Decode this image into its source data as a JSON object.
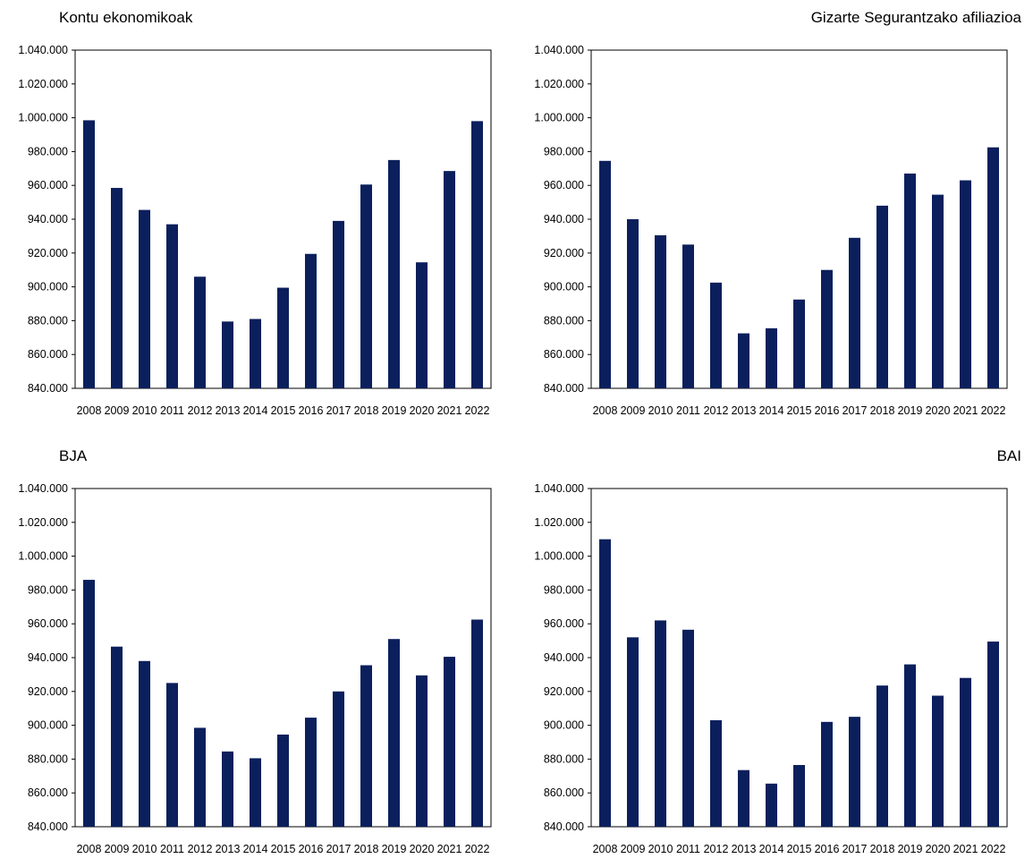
{
  "chart_data": [
    {
      "type": "bar",
      "title": "Kontu ekonomikoak",
      "title_align": "left",
      "categories": [
        "2008",
        "2009",
        "2010",
        "2011",
        "2012",
        "2013",
        "2014",
        "2015",
        "2016",
        "2017",
        "2018",
        "2019",
        "2020",
        "2021",
        "2022"
      ],
      "values": [
        998500,
        958500,
        945500,
        937000,
        906000,
        879500,
        881000,
        899500,
        919500,
        939000,
        960500,
        975000,
        914500,
        968500,
        998000
      ],
      "ylim": [
        840000,
        1040000
      ],
      "yticks": [
        840000,
        860000,
        880000,
        900000,
        920000,
        940000,
        960000,
        980000,
        1000000,
        1020000,
        1040000
      ],
      "ytick_labels": [
        "840.000",
        "860.000",
        "880.000",
        "900.000",
        "920.000",
        "940.000",
        "960.000",
        "980.000",
        "1.000.000",
        "1.020.000",
        "1.040.000"
      ],
      "bar_color": "#0b1f5c",
      "grid": false,
      "legend": false
    },
    {
      "type": "bar",
      "title": "Gizarte Segurantzako afiliazioa",
      "title_align": "right",
      "categories": [
        "2008",
        "2009",
        "2010",
        "2011",
        "2012",
        "2013",
        "2014",
        "2015",
        "2016",
        "2017",
        "2018",
        "2019",
        "2020",
        "2021",
        "2022"
      ],
      "values": [
        974500,
        940000,
        930500,
        925000,
        902500,
        872500,
        875500,
        892500,
        910000,
        929000,
        948000,
        967000,
        954500,
        963000,
        982500
      ],
      "ylim": [
        840000,
        1040000
      ],
      "yticks": [
        840000,
        860000,
        880000,
        900000,
        920000,
        940000,
        960000,
        980000,
        1000000,
        1020000,
        1040000
      ],
      "ytick_labels": [
        "840.000",
        "860.000",
        "880.000",
        "900.000",
        "920.000",
        "940.000",
        "960.000",
        "980.000",
        "1.000.000",
        "1.020.000",
        "1.040.000"
      ],
      "bar_color": "#0b1f5c",
      "grid": false,
      "legend": false
    },
    {
      "type": "bar",
      "title": "BJA",
      "title_align": "left",
      "categories": [
        "2008",
        "2009",
        "2010",
        "2011",
        "2012",
        "2013",
        "2014",
        "2015",
        "2016",
        "2017",
        "2018",
        "2019",
        "2020",
        "2021",
        "2022"
      ],
      "values": [
        986000,
        946500,
        938000,
        925000,
        898500,
        884500,
        880500,
        894500,
        904500,
        920000,
        935500,
        951000,
        929500,
        940500,
        962500
      ],
      "ylim": [
        840000,
        1040000
      ],
      "yticks": [
        840000,
        860000,
        880000,
        900000,
        920000,
        940000,
        960000,
        980000,
        1000000,
        1020000,
        1040000
      ],
      "ytick_labels": [
        "840.000",
        "860.000",
        "880.000",
        "900.000",
        "920.000",
        "940.000",
        "960.000",
        "980.000",
        "1.000.000",
        "1.020.000",
        "1.040.000"
      ],
      "bar_color": "#0b1f5c",
      "grid": false,
      "legend": false
    },
    {
      "type": "bar",
      "title": "BAI",
      "title_align": "right",
      "categories": [
        "2008",
        "2009",
        "2010",
        "2011",
        "2012",
        "2013",
        "2014",
        "2015",
        "2016",
        "2017",
        "2018",
        "2019",
        "2020",
        "2021",
        "2022"
      ],
      "values": [
        1010000,
        952000,
        962000,
        956500,
        903000,
        873500,
        865500,
        876500,
        902000,
        905000,
        923500,
        936000,
        917500,
        928000,
        949500
      ],
      "ylim": [
        840000,
        1040000
      ],
      "yticks": [
        840000,
        860000,
        880000,
        900000,
        920000,
        940000,
        960000,
        980000,
        1000000,
        1020000,
        1040000
      ],
      "ytick_labels": [
        "840.000",
        "860.000",
        "880.000",
        "900.000",
        "920.000",
        "940.000",
        "960.000",
        "980.000",
        "1.000.000",
        "1.020.000",
        "1.040.000"
      ],
      "bar_color": "#0b1f5c",
      "grid": false,
      "legend": false
    }
  ]
}
